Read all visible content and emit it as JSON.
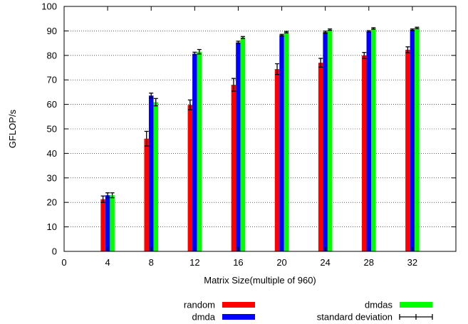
{
  "chart_data": {
    "type": "bar",
    "title": "",
    "xlabel": "Matrix Size(multiple of 960)",
    "ylabel": "GFLOP/s",
    "xlim": [
      0,
      36
    ],
    "ylim": [
      0,
      100
    ],
    "xticks": [
      "0",
      "4",
      "8",
      "12",
      "16",
      "20",
      "24",
      "28",
      "32"
    ],
    "yticks": [
      "0",
      "10",
      "20",
      "30",
      "40",
      "50",
      "60",
      "70",
      "80",
      "90",
      "100"
    ],
    "grid": "horizontal dotted",
    "categories": [
      4,
      8,
      12,
      16,
      20,
      24,
      28,
      32
    ],
    "series": [
      {
        "name": "random",
        "color": "#ff0000",
        "values": [
          21.3,
          46.0,
          59.8,
          68.0,
          74.4,
          77.0,
          80.0,
          82.3
        ],
        "stddev": [
          1.3,
          3.0,
          2.0,
          2.6,
          2.2,
          1.8,
          1.2,
          1.2
        ]
      },
      {
        "name": "dmda",
        "color": "#0000ff",
        "values": [
          22.9,
          63.6,
          80.7,
          85.3,
          88.3,
          89.5,
          89.8,
          90.5
        ],
        "stddev": [
          1.0,
          1.0,
          0.6,
          0.5,
          0.3,
          0.4,
          0.3,
          0.3
        ]
      },
      {
        "name": "dmdas",
        "color": "#00ff00",
        "values": [
          22.9,
          60.9,
          81.5,
          87.3,
          89.5,
          90.5,
          91.0,
          91.2
        ],
        "stddev": [
          1.0,
          1.5,
          0.9,
          0.4,
          0.3,
          0.3,
          0.3,
          0.3
        ]
      }
    ],
    "legend": {
      "placement": "bottom",
      "items": [
        "random",
        "dmda",
        "dmdas",
        "standard deviation"
      ]
    }
  }
}
